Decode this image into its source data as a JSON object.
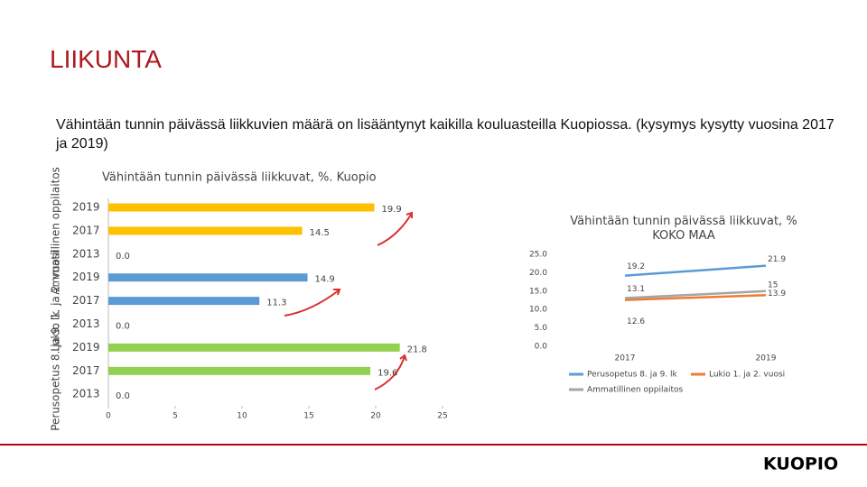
{
  "title": "LIIKUNTA",
  "subtitle": "Vähintään tunnin päivässä liikkuvien määrä on lisääntynyt kaikilla kouluasteilla Kuopiossa. (kysymys kysytty vuosina 2017 ja 2019)",
  "logo": "KUOPIO",
  "chart_data": [
    {
      "type": "hbar",
      "title": "Vähintään tunnin päivässä liikkuvat, %. Kuopio",
      "xlim": [
        0,
        25
      ],
      "xticks": [
        0,
        5,
        10,
        15,
        20,
        25
      ],
      "series": [
        {
          "name": "Ammatillinen oppilaitos",
          "color": "#ffc000",
          "categories": [
            "2019",
            "2017",
            "2013"
          ],
          "values": [
            19.9,
            14.5,
            0
          ],
          "value_labels": [
            "19.9",
            "14.5",
            "0.0"
          ]
        },
        {
          "name": "Lukio 1. ja 2. vuosi",
          "color": "#5b9bd5",
          "categories": [
            "2019",
            "2017",
            "2013"
          ],
          "values": [
            14.9,
            11.3,
            0
          ],
          "value_labels": [
            "14.9",
            "11.3",
            "0.0"
          ]
        },
        {
          "name": "Perusopetus 8. ja 9. lk",
          "color": "#92d050",
          "categories": [
            "2019",
            "2017",
            "2013"
          ],
          "values": [
            21.8,
            19.6,
            0
          ],
          "value_labels": [
            "21.8",
            "19.6",
            "0.0"
          ]
        }
      ]
    },
    {
      "type": "line",
      "title": "Vähintään tunnin päivässä liikkuvat, % KOKO MAA",
      "categories": [
        "2017",
        "2019"
      ],
      "ylim": [
        0,
        25
      ],
      "yticks": [
        {
          "value": 0,
          "label": "0.0"
        },
        {
          "value": 5,
          "label": "5.0"
        },
        {
          "value": 10,
          "label": "10.0"
        },
        {
          "value": 15,
          "label": "15.0"
        },
        {
          "value": 20,
          "label": "20.0"
        },
        {
          "value": 25,
          "label": "25.0"
        }
      ],
      "series": [
        {
          "name": "Perusopetus 8. ja 9. lk",
          "color": "#5b9bd5",
          "values": [
            19.2,
            21.9
          ]
        },
        {
          "name": "Lukio 1. ja 2. vuosi",
          "color": "#ed7d31",
          "values": [
            12.6,
            13.9
          ]
        },
        {
          "name": "Ammatillinen oppilaitos",
          "color": "#a5a5a5",
          "values": [
            13.1,
            15.0
          ]
        }
      ]
    }
  ]
}
